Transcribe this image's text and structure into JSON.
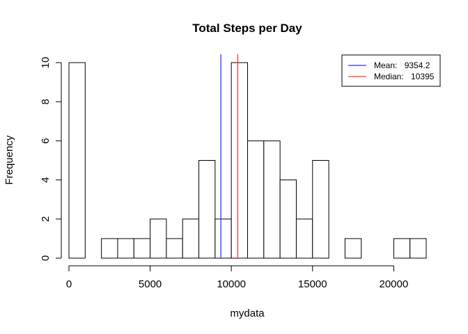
{
  "chart_data": {
    "type": "histogram",
    "title": "Total Steps per Day",
    "xlabel": "mydata",
    "ylabel": "Frequency",
    "bin_width": 1000,
    "bins": [
      {
        "start": 0,
        "end": 1000,
        "count": 10
      },
      {
        "start": 1000,
        "end": 2000,
        "count": 0
      },
      {
        "start": 2000,
        "end": 3000,
        "count": 1
      },
      {
        "start": 3000,
        "end": 4000,
        "count": 1
      },
      {
        "start": 4000,
        "end": 5000,
        "count": 1
      },
      {
        "start": 5000,
        "end": 6000,
        "count": 2
      },
      {
        "start": 6000,
        "end": 7000,
        "count": 1
      },
      {
        "start": 7000,
        "end": 8000,
        "count": 2
      },
      {
        "start": 8000,
        "end": 9000,
        "count": 5
      },
      {
        "start": 9000,
        "end": 10000,
        "count": 2
      },
      {
        "start": 10000,
        "end": 11000,
        "count": 10
      },
      {
        "start": 11000,
        "end": 12000,
        "count": 6
      },
      {
        "start": 12000,
        "end": 13000,
        "count": 6
      },
      {
        "start": 13000,
        "end": 14000,
        "count": 4
      },
      {
        "start": 14000,
        "end": 15000,
        "count": 2
      },
      {
        "start": 15000,
        "end": 16000,
        "count": 5
      },
      {
        "start": 16000,
        "end": 17000,
        "count": 0
      },
      {
        "start": 17000,
        "end": 18000,
        "count": 1
      },
      {
        "start": 18000,
        "end": 19000,
        "count": 0
      },
      {
        "start": 19000,
        "end": 20000,
        "count": 0
      },
      {
        "start": 20000,
        "end": 21000,
        "count": 1
      },
      {
        "start": 21000,
        "end": 22000,
        "count": 1
      }
    ],
    "xlim": [
      0,
      22000
    ],
    "ylim": [
      0,
      10
    ],
    "x_ticks": [
      0,
      5000,
      10000,
      15000,
      20000
    ],
    "y_ticks": [
      0,
      2,
      4,
      6,
      8,
      10
    ],
    "grid": false,
    "bar_fill": "#ffffff",
    "bar_stroke": "#000000",
    "reference_lines": [
      {
        "label": "Mean:",
        "value_text": "9354.2",
        "value": 9354.2,
        "color": "#3333ff"
      },
      {
        "label": "Median:",
        "value_text": "10395",
        "value": 10395,
        "color": "#ff3333"
      }
    ],
    "legend_position": "top-right"
  }
}
